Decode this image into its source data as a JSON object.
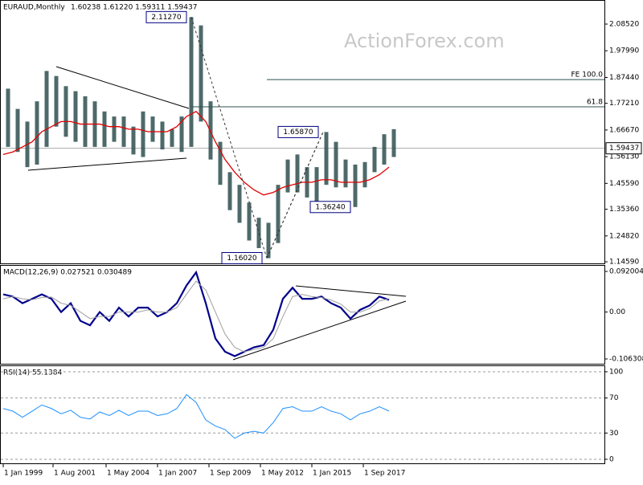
{
  "chart_data": [
    {
      "type": "ohlc",
      "title": "EURAUD,Monthly",
      "subtitle": "1.60238 1.61220 1.59311 1.59437",
      "watermark": "ActionForex.com",
      "color": "#2f4f4f",
      "x": [
        "1999-01",
        "1999-07",
        "2000-01",
        "2000-07",
        "2001-01",
        "2001-07",
        "2002-01",
        "2002-07",
        "2003-01",
        "2003-07",
        "2004-01",
        "2004-07",
        "2005-01",
        "2005-07",
        "2006-01",
        "2006-07",
        "2007-01",
        "2007-07",
        "2008-01",
        "2008-07",
        "2009-01",
        "2009-07",
        "2010-01",
        "2010-07",
        "2011-01",
        "2011-07",
        "2012-01",
        "2012-07",
        "2013-01",
        "2013-07",
        "2014-01",
        "2014-07",
        "2015-01",
        "2015-07",
        "2016-01",
        "2016-07",
        "2017-01",
        "2017-07",
        "2018-01",
        "2018-07",
        "2019-01"
      ],
      "high": [
        1.83,
        1.75,
        1.7,
        1.78,
        1.9,
        1.88,
        1.84,
        1.82,
        1.8,
        1.78,
        1.74,
        1.72,
        1.72,
        1.68,
        1.74,
        1.72,
        1.7,
        1.67,
        1.72,
        2.1127,
        2.08,
        1.78,
        1.62,
        1.5,
        1.45,
        1.38,
        1.32,
        1.3,
        1.45,
        1.55,
        1.57,
        1.52,
        1.52,
        1.6587,
        1.62,
        1.55,
        1.53,
        1.54,
        1.6,
        1.65,
        1.67
      ],
      "low": [
        1.6,
        1.58,
        1.52,
        1.53,
        1.6,
        1.68,
        1.64,
        1.62,
        1.6,
        1.6,
        1.6,
        1.62,
        1.6,
        1.57,
        1.56,
        1.62,
        1.59,
        1.6,
        1.58,
        1.6,
        1.7,
        1.55,
        1.45,
        1.35,
        1.3,
        1.23,
        1.2,
        1.1602,
        1.22,
        1.42,
        1.42,
        1.4,
        1.38,
        1.45,
        1.44,
        1.44,
        1.3624,
        1.44,
        1.5,
        1.53,
        1.56
      ],
      "series": [
        {
          "color": "#e00000",
          "values": [
            1.57,
            1.58,
            1.6,
            1.62,
            1.66,
            1.68,
            1.7,
            1.7,
            1.69,
            1.69,
            1.69,
            1.68,
            1.68,
            1.67,
            1.67,
            1.66,
            1.66,
            1.66,
            1.68,
            1.72,
            1.74,
            1.7,
            1.62,
            1.55,
            1.5,
            1.46,
            1.43,
            1.41,
            1.42,
            1.44,
            1.45,
            1.46,
            1.46,
            1.47,
            1.47,
            1.46,
            1.46,
            1.46,
            1.47,
            1.49,
            1.52
          ]
        }
      ],
      "last": 1.59437,
      "ylim": [
        1.1396,
        2.1804
      ],
      "yticks": [
        {
          "value": 2.0852,
          "label": "2.08520"
        },
        {
          "value": 1.9799,
          "label": "1.97990"
        },
        {
          "value": 1.8744,
          "label": "1.87440"
        },
        {
          "value": 1.7721,
          "label": "1.77210"
        },
        {
          "value": 1.6667,
          "label": "1.66670"
        },
        {
          "value": 1.5613,
          "label": "1.56130"
        },
        {
          "value": 1.4559,
          "label": "1.45590"
        },
        {
          "value": 1.3536,
          "label": "1.35360"
        },
        {
          "value": 1.2482,
          "label": "1.24820"
        },
        {
          "value": 1.1459,
          "label": "1.14590"
        }
      ],
      "annotations": [
        {
          "label": "2.11270",
          "value": 2.1127,
          "x": "2008-10"
        },
        {
          "label": "1.16020",
          "value": 1.1602,
          "x": "2012-09"
        },
        {
          "label": "1.65870",
          "value": 1.6587,
          "x": "2015-08"
        },
        {
          "label": "1.36240",
          "value": 1.3624,
          "x": "2017-04"
        }
      ],
      "levels": [
        {
          "name": "61.8",
          "value": 1.7583,
          "from": "2008-10"
        },
        {
          "name": "FE 100.0",
          "value": 1.866,
          "from": "2012-09"
        }
      ]
    },
    {
      "type": "macd",
      "title": "MACD(12,26,9) 0.027521 0.030489",
      "series": [
        {
          "color": "#00008b",
          "values": [
            0.04,
            0.035,
            0.02,
            0.03,
            0.04,
            0.03,
            0.0,
            0.02,
            -0.02,
            -0.03,
            0.0,
            -0.02,
            0.01,
            -0.01,
            0.01,
            0.01,
            -0.01,
            0.0,
            0.02,
            0.06,
            0.09,
            0.02,
            -0.06,
            -0.09,
            -0.1,
            -0.09,
            -0.08,
            -0.075,
            -0.04,
            0.03,
            0.055,
            0.03,
            0.03,
            0.035,
            0.02,
            0.01,
            -0.015,
            0.005,
            0.015,
            0.035,
            0.027521
          ]
        },
        {
          "color": "#a0a0a0",
          "values": [
            0.03,
            0.035,
            0.03,
            0.028,
            0.033,
            0.034,
            0.02,
            0.015,
            0.0,
            -0.015,
            -0.01,
            -0.01,
            0.0,
            0.0,
            0.0,
            0.005,
            0.0,
            0.0,
            0.01,
            0.04,
            0.07,
            0.05,
            0.0,
            -0.05,
            -0.08,
            -0.09,
            -0.085,
            -0.08,
            -0.06,
            -0.01,
            0.035,
            0.04,
            0.035,
            0.033,
            0.027,
            0.018,
            0.0,
            0.0,
            0.008,
            0.025,
            0.030489
          ]
        }
      ],
      "ylim": [
        -0.1172,
        0.1066
      ],
      "yticks": [
        0.092004,
        {
          "value": 0,
          "label": "0.00"
        },
        -0.106308
      ],
      "grid": false
    },
    {
      "type": "rsi",
      "title": "RSI(14) 55.1384",
      "series": [
        {
          "color": "#1e90ff",
          "values": [
            58,
            55,
            48,
            55,
            62,
            58,
            52,
            56,
            48,
            46,
            54,
            50,
            56,
            50,
            55,
            55,
            50,
            52,
            58,
            74,
            65,
            45,
            38,
            34,
            24,
            30,
            32,
            30,
            42,
            58,
            60,
            55,
            55,
            60,
            55,
            52,
            45,
            52,
            55,
            60,
            55.1384
          ]
        }
      ],
      "ylim": [
        -4.6,
        107.3
      ],
      "yticks": [
        100,
        70,
        30,
        0
      ],
      "grid": true,
      "xticks": [
        {
          "value": "1999-01",
          "label": "1 Jan 1999"
        },
        {
          "value": "2001-08",
          "label": "1 Aug 2001"
        },
        {
          "value": "2004-05",
          "label": "1 May 2004"
        },
        {
          "value": "2007-01",
          "label": "1 Jan 2007"
        },
        {
          "value": "2009-09",
          "label": "1 Sep 2009"
        },
        {
          "value": "2012-05",
          "label": "1 May 2012"
        },
        {
          "value": "2015-01",
          "label": "1 Jan 2015"
        },
        {
          "value": "2017-09",
          "label": "1 Sep 2017"
        }
      ]
    }
  ]
}
